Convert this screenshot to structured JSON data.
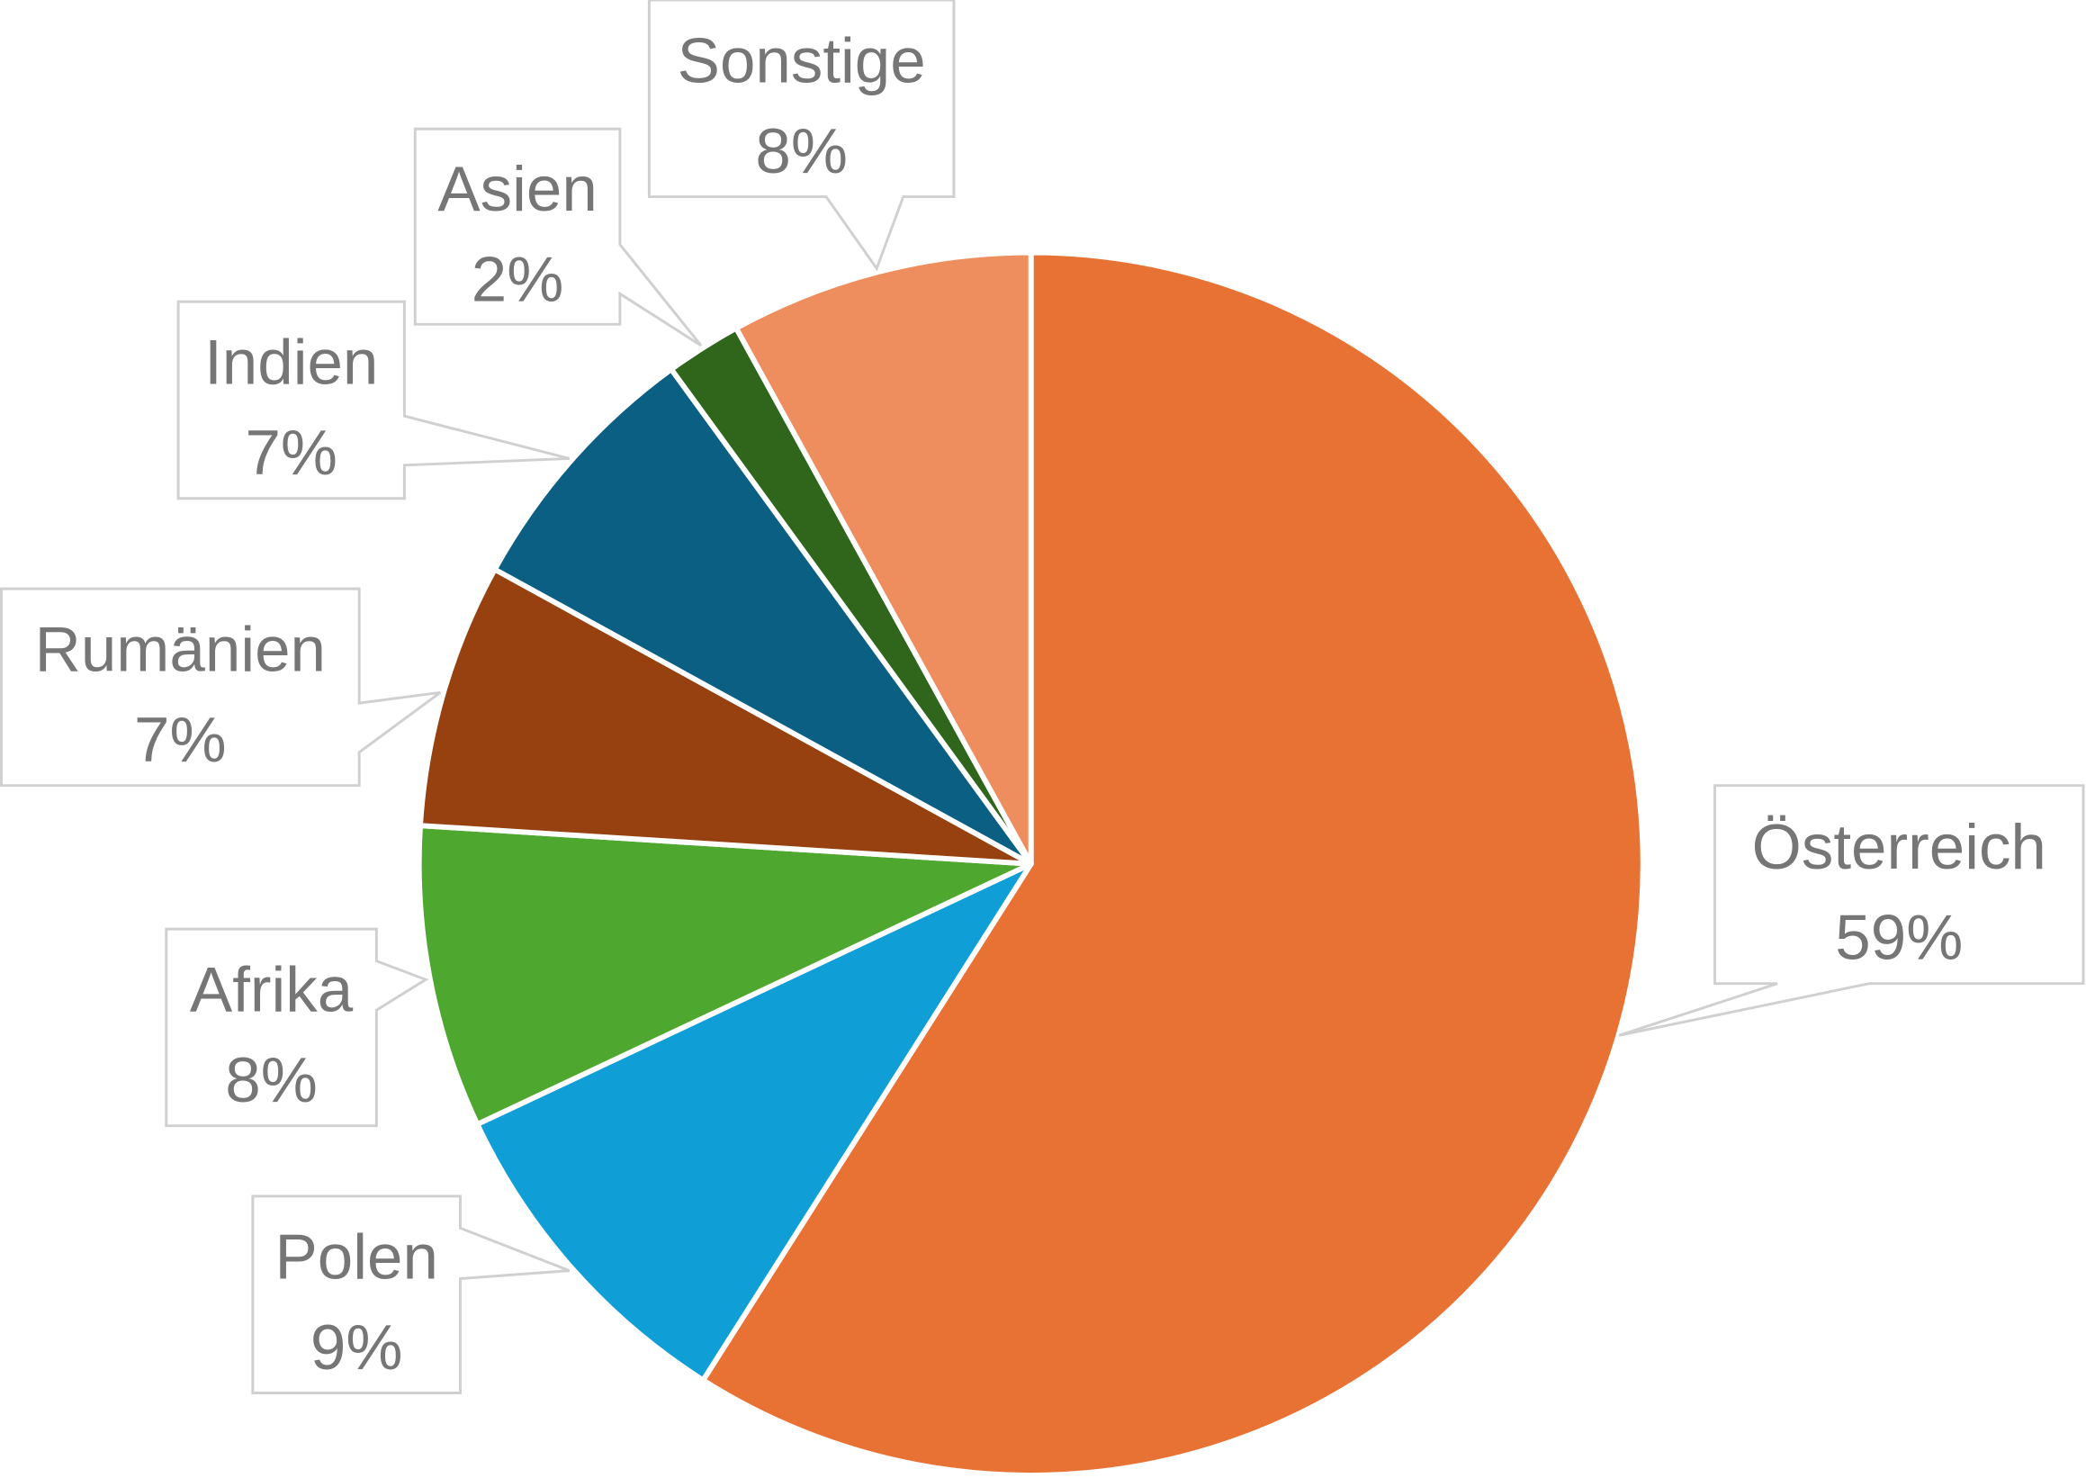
{
  "chart_data": {
    "type": "pie",
    "start_angle_deg": 0,
    "direction": "clockwise",
    "slices": [
      {
        "label": "Österreich",
        "value": 59,
        "display": "59%",
        "color": "#E87234"
      },
      {
        "label": "Polen",
        "value": 9,
        "display": "9%",
        "color": "#0F9ED5"
      },
      {
        "label": "Afrika",
        "value": 8,
        "display": "8%",
        "color": "#4EA72E"
      },
      {
        "label": "Rumänien",
        "value": 7,
        "display": "7%",
        "color": "#974010"
      },
      {
        "label": "Indien",
        "value": 7,
        "display": "7%",
        "color": "#0A5F82"
      },
      {
        "label": "Asien",
        "value": 2,
        "display": "2%",
        "color": "#30651C"
      },
      {
        "label": "Sonstige",
        "value": 8,
        "display": "8%",
        "color": "#EE8E5E"
      }
    ],
    "data_labels": "callouts with category name and percentage",
    "legend": "none"
  }
}
